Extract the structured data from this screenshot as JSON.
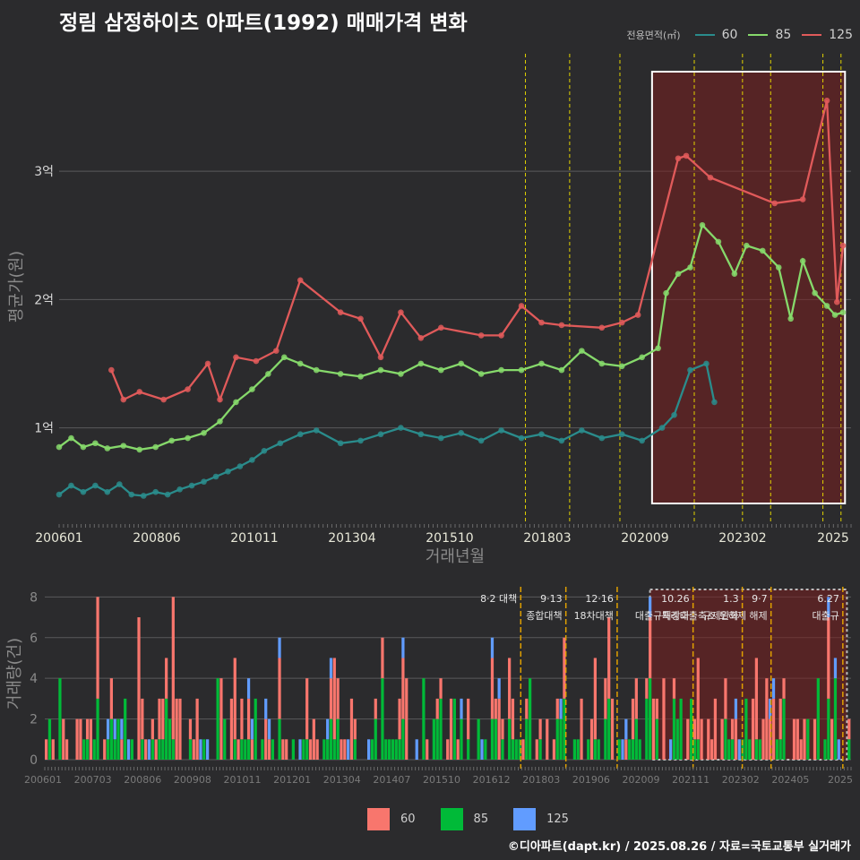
{
  "title": "정림 삼정하이츠 아파트(1992) 매매가격 변화",
  "legend_title": "전용면적(㎡)",
  "footer": "©디아파트(dapt.kr) / 2025.08.26 / 자료=국토교통부 실거래가",
  "colors": {
    "s60": "#2a8c8c",
    "s85": "#86d96b",
    "s125": "#e05a5a",
    "b60": "#f8766d",
    "b85": "#00ba38",
    "b125": "#619cff",
    "event": "#e2d300",
    "eventLow": "#e0a000"
  },
  "chart_data": [
    {
      "type": "line",
      "title": "정림 삼정하이츠 아파트(1992) 매매가격 변화",
      "xlabel": "거래년월",
      "ylabel": "평균가(원)",
      "x_ticks": [
        "200601",
        "200806",
        "201011",
        "201304",
        "201510",
        "201803",
        "202009",
        "202302",
        "2025"
      ],
      "y_ticks": [
        {
          "v": 1,
          "label": "1억"
        },
        {
          "v": 2,
          "label": "2억"
        },
        {
          "v": 3,
          "label": "3억"
        }
      ],
      "ylim": [
        0.25,
        3.95
      ],
      "xlim": [
        2006.0,
        2025.7
      ],
      "highlight_region": [
        2020.75,
        2025.55
      ],
      "events": [
        2017.6,
        2018.7,
        2019.95,
        2021.8,
        2023.0,
        2023.7,
        2025.0,
        2025.45
      ],
      "series": [
        {
          "name": "60",
          "points": [
            [
              2006.0,
              0.48
            ],
            [
              2006.3,
              0.55
            ],
            [
              2006.6,
              0.5
            ],
            [
              2006.9,
              0.55
            ],
            [
              2007.2,
              0.5
            ],
            [
              2007.5,
              0.56
            ],
            [
              2007.8,
              0.48
            ],
            [
              2008.1,
              0.47
            ],
            [
              2008.4,
              0.5
            ],
            [
              2008.7,
              0.48
            ],
            [
              2009.0,
              0.52
            ],
            [
              2009.3,
              0.55
            ],
            [
              2009.6,
              0.58
            ],
            [
              2009.9,
              0.62
            ],
            [
              2010.2,
              0.66
            ],
            [
              2010.5,
              0.7
            ],
            [
              2010.8,
              0.75
            ],
            [
              2011.1,
              0.82
            ],
            [
              2011.5,
              0.88
            ],
            [
              2012.0,
              0.95
            ],
            [
              2012.4,
              0.98
            ],
            [
              2013.0,
              0.88
            ],
            [
              2013.5,
              0.9
            ],
            [
              2014.0,
              0.95
            ],
            [
              2014.5,
              1.0
            ],
            [
              2015.0,
              0.95
            ],
            [
              2015.5,
              0.92
            ],
            [
              2016.0,
              0.96
            ],
            [
              2016.5,
              0.9
            ],
            [
              2017.0,
              0.98
            ],
            [
              2017.5,
              0.92
            ],
            [
              2018.0,
              0.95
            ],
            [
              2018.5,
              0.9
            ],
            [
              2019.0,
              0.98
            ],
            [
              2019.5,
              0.92
            ],
            [
              2020.0,
              0.95
            ],
            [
              2020.5,
              0.9
            ],
            [
              2021.0,
              1.0
            ],
            [
              2021.3,
              1.1
            ],
            [
              2021.7,
              1.45
            ],
            [
              2022.1,
              1.5
            ],
            [
              2022.3,
              1.2
            ]
          ]
        },
        {
          "name": "85",
          "points": [
            [
              2006.0,
              0.85
            ],
            [
              2006.3,
              0.92
            ],
            [
              2006.6,
              0.85
            ],
            [
              2006.9,
              0.88
            ],
            [
              2007.2,
              0.84
            ],
            [
              2007.6,
              0.86
            ],
            [
              2008.0,
              0.83
            ],
            [
              2008.4,
              0.85
            ],
            [
              2008.8,
              0.9
            ],
            [
              2009.2,
              0.92
            ],
            [
              2009.6,
              0.96
            ],
            [
              2010.0,
              1.05
            ],
            [
              2010.4,
              1.2
            ],
            [
              2010.8,
              1.3
            ],
            [
              2011.2,
              1.42
            ],
            [
              2011.6,
              1.55
            ],
            [
              2012.0,
              1.5
            ],
            [
              2012.4,
              1.45
            ],
            [
              2013.0,
              1.42
            ],
            [
              2013.5,
              1.4
            ],
            [
              2014.0,
              1.45
            ],
            [
              2014.5,
              1.42
            ],
            [
              2015.0,
              1.5
            ],
            [
              2015.5,
              1.45
            ],
            [
              2016.0,
              1.5
            ],
            [
              2016.5,
              1.42
            ],
            [
              2017.0,
              1.45
            ],
            [
              2017.5,
              1.45
            ],
            [
              2018.0,
              1.5
            ],
            [
              2018.5,
              1.45
            ],
            [
              2019.0,
              1.6
            ],
            [
              2019.5,
              1.5
            ],
            [
              2020.0,
              1.48
            ],
            [
              2020.5,
              1.55
            ],
            [
              2020.9,
              1.62
            ],
            [
              2021.1,
              2.05
            ],
            [
              2021.4,
              2.2
            ],
            [
              2021.7,
              2.25
            ],
            [
              2022.0,
              2.58
            ],
            [
              2022.4,
              2.45
            ],
            [
              2022.8,
              2.2
            ],
            [
              2023.1,
              2.42
            ],
            [
              2023.5,
              2.38
            ],
            [
              2023.9,
              2.25
            ],
            [
              2024.2,
              1.85
            ],
            [
              2024.5,
              2.3
            ],
            [
              2024.8,
              2.05
            ],
            [
              2025.1,
              1.95
            ],
            [
              2025.3,
              1.88
            ],
            [
              2025.5,
              1.9
            ]
          ]
        },
        {
          "name": "125",
          "points": [
            [
              2007.3,
              1.45
            ],
            [
              2007.6,
              1.22
            ],
            [
              2008.0,
              1.28
            ],
            [
              2008.6,
              1.22
            ],
            [
              2009.2,
              1.3
            ],
            [
              2009.7,
              1.5
            ],
            [
              2010.0,
              1.22
            ],
            [
              2010.4,
              1.55
            ],
            [
              2010.9,
              1.52
            ],
            [
              2011.4,
              1.6
            ],
            [
              2012.0,
              2.15
            ],
            [
              2013.0,
              1.9
            ],
            [
              2013.5,
              1.85
            ],
            [
              2014.0,
              1.55
            ],
            [
              2014.5,
              1.9
            ],
            [
              2015.0,
              1.7
            ],
            [
              2015.5,
              1.78
            ],
            [
              2016.5,
              1.72
            ],
            [
              2017.0,
              1.72
            ],
            [
              2017.5,
              1.95
            ],
            [
              2018.0,
              1.82
            ],
            [
              2018.5,
              1.8
            ],
            [
              2019.5,
              1.78
            ],
            [
              2020.0,
              1.82
            ],
            [
              2020.4,
              1.88
            ],
            [
              2021.4,
              3.1
            ],
            [
              2021.6,
              3.12
            ],
            [
              2022.2,
              2.95
            ],
            [
              2023.8,
              2.75
            ],
            [
              2024.5,
              2.78
            ],
            [
              2025.1,
              3.55
            ],
            [
              2025.35,
              1.98
            ],
            [
              2025.5,
              2.42
            ]
          ]
        }
      ]
    },
    {
      "type": "bar",
      "ylabel": "거래량(건)",
      "y_ticks": [
        0,
        2,
        4,
        6,
        8
      ],
      "ylim": [
        0,
        8.5
      ],
      "x_ticks": [
        "200601",
        "200703",
        "200806",
        "200908",
        "201011",
        "201201",
        "201304",
        "201407",
        "201510",
        "201612",
        "201803",
        "201906",
        "202009",
        "202111",
        "202302",
        "202405",
        "2025"
      ],
      "series_names": [
        "60",
        "85",
        "125"
      ],
      "events": [
        {
          "x": 2017.6,
          "label1": "8·2 대책",
          "label2": ""
        },
        {
          "x": 2018.7,
          "label1": "9·13",
          "label2": "종합대책"
        },
        {
          "x": 2019.95,
          "label1": "12·16",
          "label2": "18차대책"
        },
        {
          "x": 2021.8,
          "label1": "10.26",
          "label2": "대출규제강화"
        },
        {
          "x": 2023.0,
          "label1": "1.3",
          "label2": "규제완화"
        },
        {
          "x": 2023.7,
          "label1": "9·7",
          "label2": "특례대출축소 토허제 해제"
        },
        {
          "x": 2025.45,
          "label1": "6.27",
          "label2": "대출규"
        }
      ]
    }
  ]
}
